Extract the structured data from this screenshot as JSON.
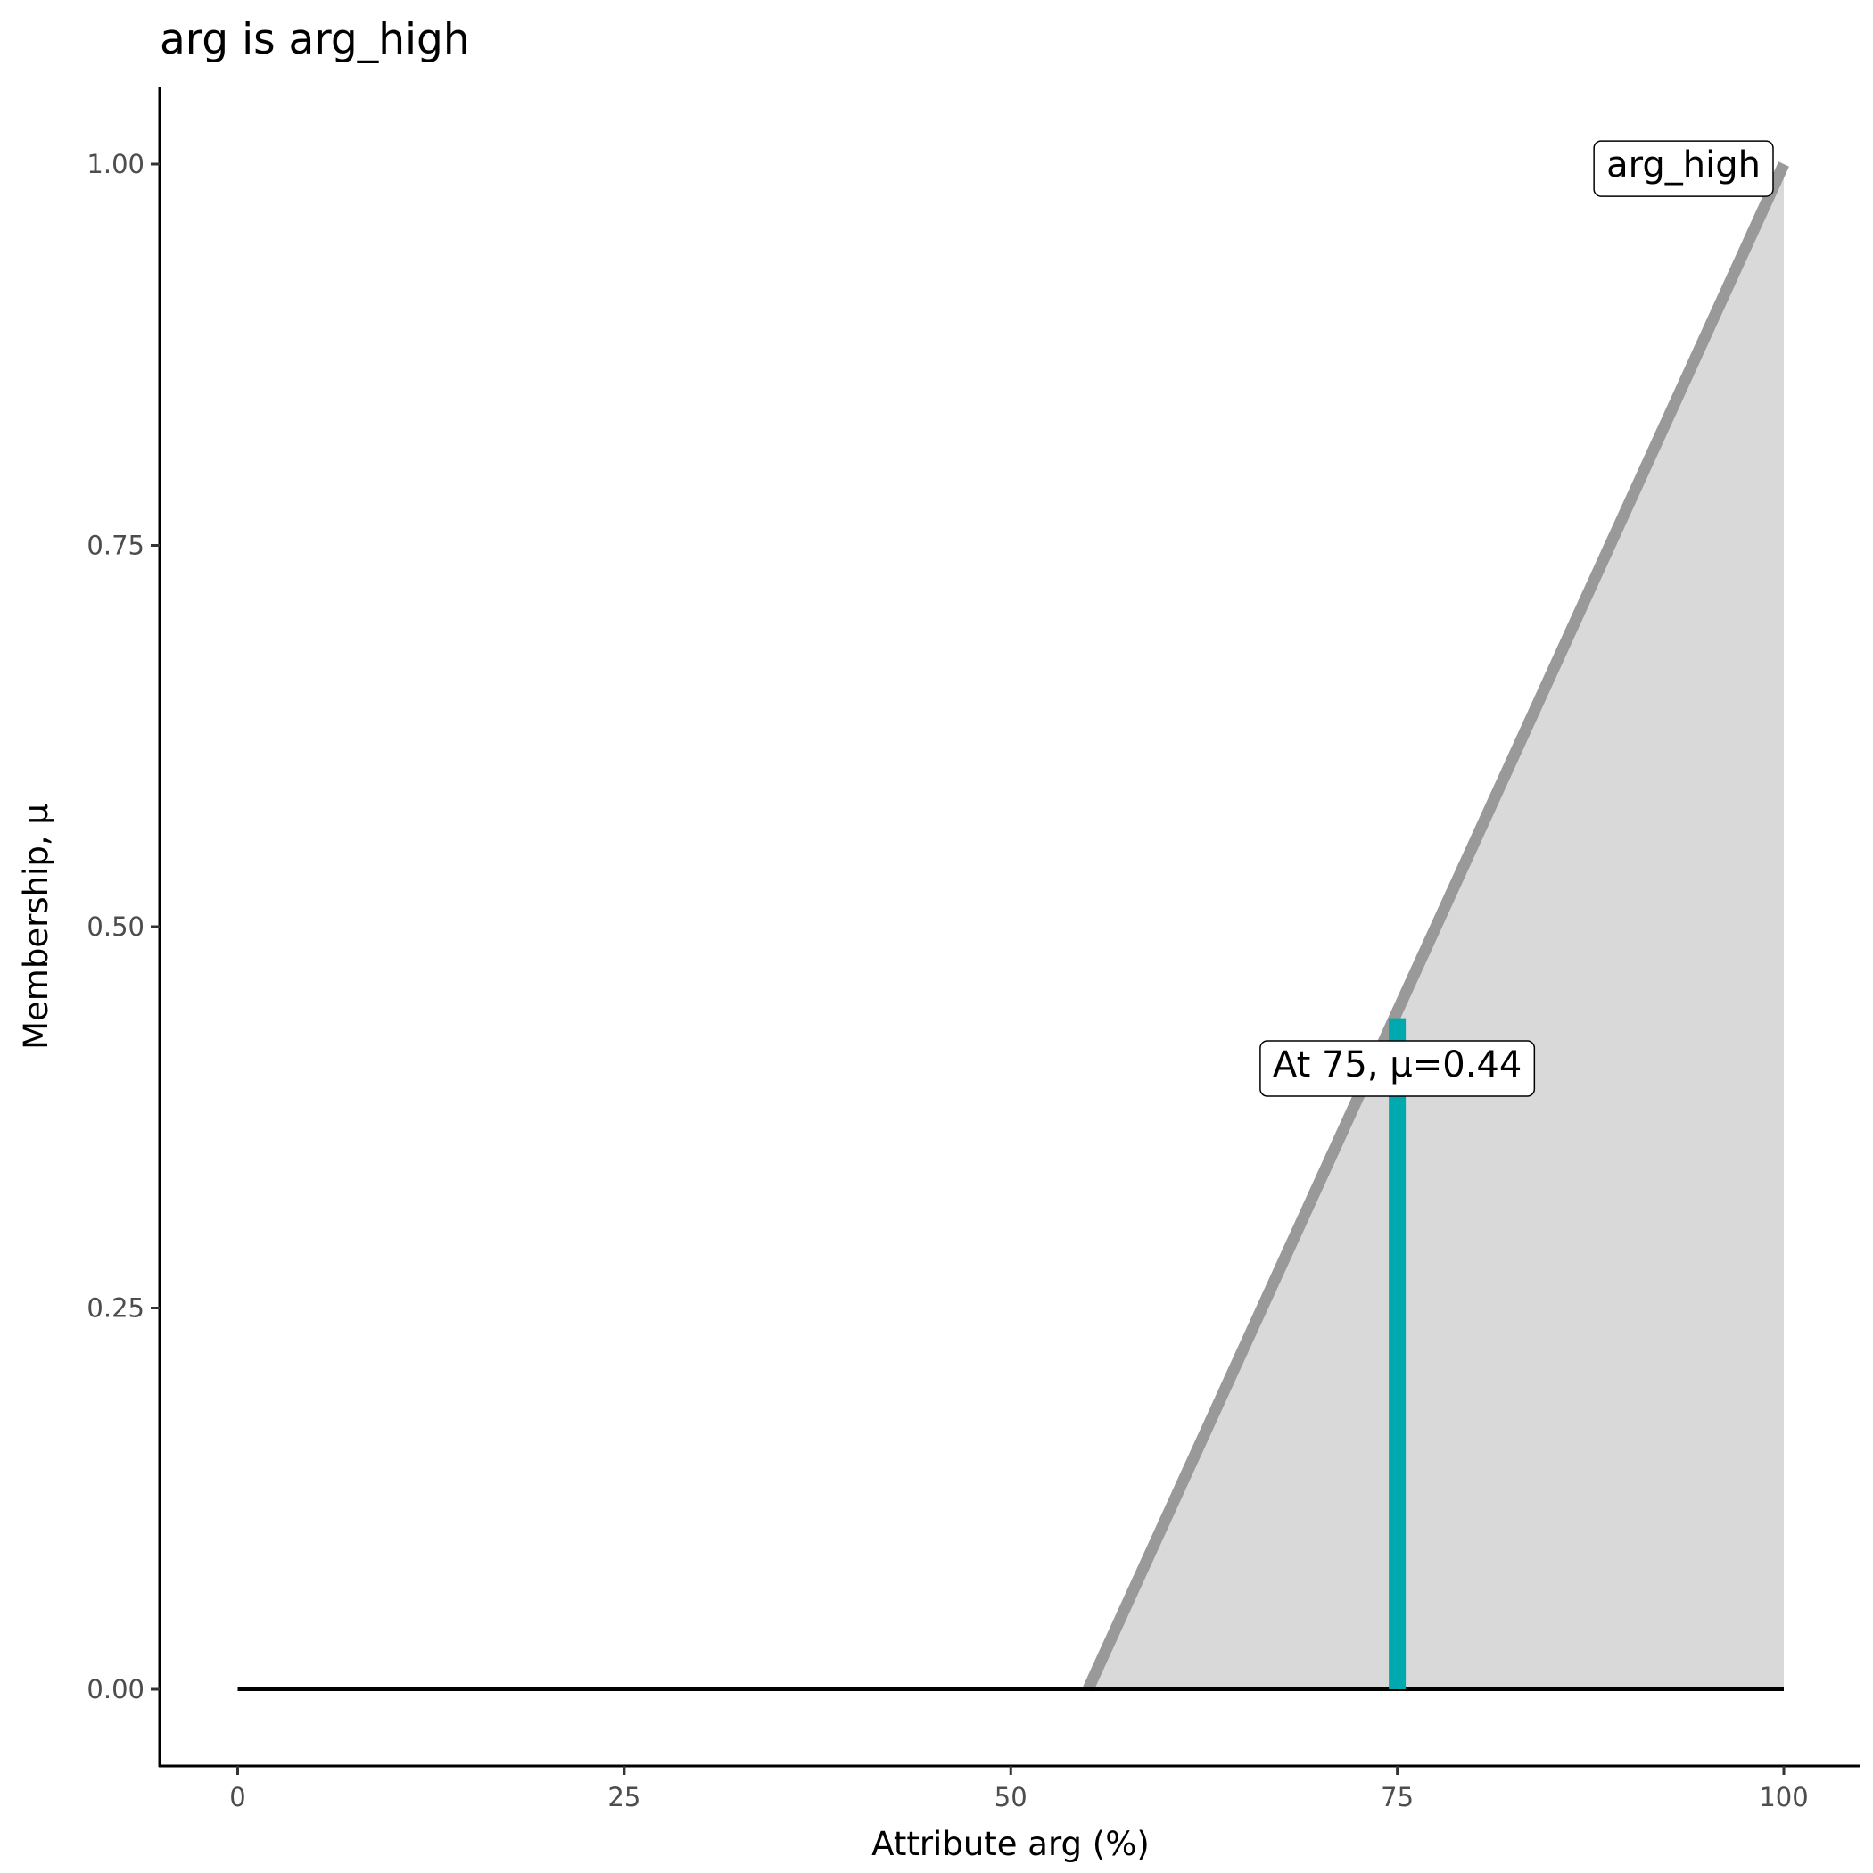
{
  "chart_data": {
    "type": "area",
    "title": "arg is arg_high",
    "xlabel": "Attribute arg (%)",
    "ylabel": "Membership, μ",
    "xlim": [
      -5,
      105
    ],
    "ylim": [
      -0.05,
      1.05
    ],
    "x_ticks": [
      0,
      25,
      50,
      75,
      100
    ],
    "x_tick_labels": [
      "0",
      "25",
      "50",
      "75",
      "100"
    ],
    "y_ticks": [
      0,
      0.25,
      0.5,
      0.75,
      1
    ],
    "y_tick_labels": [
      "0.00",
      "0.25",
      "0.50",
      "0.75",
      "1.00"
    ],
    "grid": false,
    "membership_function": {
      "name": "arg_high",
      "x": [
        0,
        55,
        100
      ],
      "y": [
        0,
        0,
        1
      ]
    },
    "marker": {
      "x": 75,
      "mu": 0.44
    },
    "annotations": [
      {
        "text": "arg_high",
        "x": 100,
        "y": 1.0
      },
      {
        "text": "At 75, μ=0.44",
        "x": 75,
        "y": 0.41
      }
    ],
    "colors": {
      "line": "#999999",
      "fill": "#d9d9d9",
      "marker": "#00a9ad",
      "baseline": "#000000"
    }
  }
}
